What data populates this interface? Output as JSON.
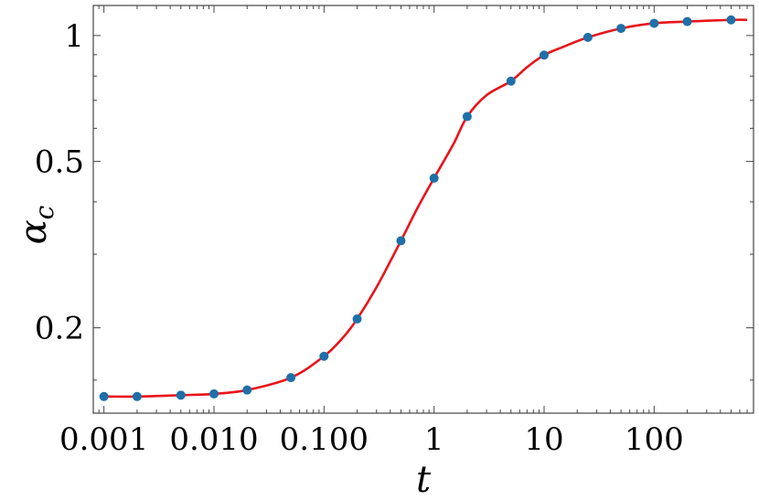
{
  "chart_data": {
    "type": "scatter",
    "title": "",
    "xlabel": "t",
    "ylabel": "α",
    "ylabel_sub": "c",
    "xscale": "log",
    "yscale": "log",
    "xlim": [
      0.0008,
      800
    ],
    "ylim": [
      0.125,
      1.18
    ],
    "grid": false,
    "x_ticks": [
      {
        "value": 0.001,
        "label": "0.001"
      },
      {
        "value": 0.01,
        "label": "0.010"
      },
      {
        "value": 0.1,
        "label": "0.100"
      },
      {
        "value": 1,
        "label": "1"
      },
      {
        "value": 10,
        "label": "10"
      },
      {
        "value": 100,
        "label": "100"
      }
    ],
    "y_ticks": [
      {
        "value": 0.2,
        "label": "0.2"
      },
      {
        "value": 0.5,
        "label": "0.5"
      },
      {
        "value": 1,
        "label": "1"
      }
    ],
    "series": [
      {
        "kind": "points",
        "color": "#1f6fa8",
        "x": [
          0.001,
          0.002,
          0.005,
          0.01,
          0.02,
          0.05,
          0.1,
          0.2,
          0.5,
          1,
          2,
          5,
          10,
          25,
          50,
          100,
          200,
          500
        ],
        "y": [
          0.137,
          0.137,
          0.138,
          0.139,
          0.142,
          0.152,
          0.171,
          0.21,
          0.323,
          0.456,
          0.64,
          0.778,
          0.898,
          0.99,
          1.04,
          1.07,
          1.08,
          1.09
        ]
      },
      {
        "kind": "curve",
        "color": "#e8141b",
        "x": [
          0.001,
          0.002,
          0.005,
          0.01,
          0.02,
          0.05,
          0.1,
          0.15,
          0.2,
          0.3,
          0.5,
          0.7,
          1,
          1.5,
          2,
          3,
          5,
          7,
          10,
          15,
          25,
          50,
          100,
          200,
          500,
          700
        ],
        "y": [
          0.137,
          0.137,
          0.138,
          0.139,
          0.142,
          0.152,
          0.171,
          0.19,
          0.21,
          0.25,
          0.323,
          0.385,
          0.456,
          0.55,
          0.64,
          0.72,
          0.778,
          0.84,
          0.898,
          0.94,
          0.99,
          1.04,
          1.07,
          1.08,
          1.09,
          1.09
        ]
      }
    ]
  }
}
